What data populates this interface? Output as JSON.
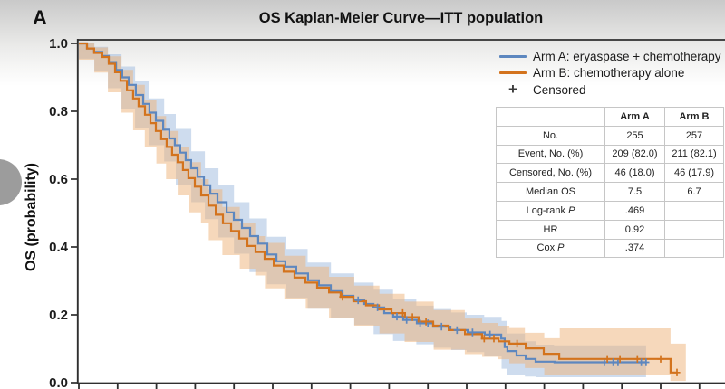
{
  "panel_label": "A",
  "title": "OS Kaplan-Meier Curve—ITT population",
  "legend": {
    "items": [
      {
        "label": "Arm A: eryaspase + chemotherapy",
        "kind": "line",
        "color": "#5d87bf"
      },
      {
        "label": "Arm B: chemotherapy alone",
        "kind": "line",
        "color": "#d3731d"
      },
      {
        "label": "Censored",
        "kind": "plus",
        "symbol": "+",
        "color": "#3a3a3a"
      }
    ]
  },
  "stats_table": {
    "headers": [
      "",
      "Arm A",
      "Arm B"
    ],
    "rows": [
      [
        "No.",
        "255",
        "257"
      ],
      [
        "Event, No. (%)",
        "209 (82.0)",
        "211 (82.1)"
      ],
      [
        "Censored, No. (%)",
        "46 (18.0)",
        "46 (17.9)"
      ],
      [
        "Median OS",
        "7.5",
        "6.7"
      ],
      [
        "Log-rank P",
        ".469",
        ""
      ],
      [
        "HR",
        "0.92",
        ""
      ],
      [
        "Cox P",
        ".374",
        ""
      ]
    ]
  },
  "chart_data": {
    "type": "line",
    "subtype": "kaplan-meier-step",
    "title": "OS Kaplan-Meier Curve—ITT population",
    "xlabel": "",
    "ylabel": "OS (probability)",
    "ylim": [
      0,
      1.0
    ],
    "xlim_months": [
      0,
      33.3
    ],
    "grid": false,
    "legend_position": "top-right",
    "y_ticks": [
      {
        "value": 1.0,
        "label": "1.0"
      },
      {
        "value": 0.8,
        "label": "0.8"
      },
      {
        "value": 0.6,
        "label": "0.6"
      },
      {
        "value": 0.4,
        "label": "0.4"
      },
      {
        "value": 0.2,
        "label": "0.2"
      },
      {
        "value": 0.0,
        "label": "0.0"
      }
    ],
    "x_ticks_months": [
      0,
      2,
      4,
      6,
      8,
      10,
      12,
      14,
      16,
      18,
      20,
      22,
      24,
      26,
      28,
      30,
      32
    ],
    "x_tick_labels_visible": false,
    "series": [
      {
        "name": "Arm A: eryaspase + chemotherapy",
        "color": "#5d87bf",
        "ci_color": "#9db9dd",
        "median_os_months": 7.5,
        "steps": [
          [
            0,
            1
          ],
          [
            0.42,
            0.985
          ],
          [
            0.79,
            0.975
          ],
          [
            1.21,
            0.963
          ],
          [
            1.54,
            0.945
          ],
          [
            1.92,
            0.922
          ],
          [
            2.24,
            0.9
          ],
          [
            2.57,
            0.878
          ],
          [
            2.94,
            0.848
          ],
          [
            3.32,
            0.822
          ],
          [
            3.64,
            0.796
          ],
          [
            3.97,
            0.772
          ],
          [
            4.35,
            0.746
          ],
          [
            4.67,
            0.72
          ],
          [
            4.95,
            0.7
          ],
          [
            5.23,
            0.678
          ],
          [
            5.51,
            0.656
          ],
          [
            5.79,
            0.632
          ],
          [
            6.12,
            0.607
          ],
          [
            6.45,
            0.582
          ],
          [
            6.78,
            0.557
          ],
          [
            7.15,
            0.532
          ],
          [
            7.62,
            0.502
          ],
          [
            7.99,
            0.48
          ],
          [
            8.41,
            0.456
          ],
          [
            8.83,
            0.432
          ],
          [
            9.25,
            0.41
          ],
          [
            9.72,
            0.378
          ],
          [
            10.19,
            0.358
          ],
          [
            10.65,
            0.342
          ],
          [
            11.21,
            0.322
          ],
          [
            11.82,
            0.302
          ],
          [
            12.38,
            0.287
          ],
          [
            12.99,
            0.27
          ],
          [
            13.6,
            0.256
          ],
          [
            14.16,
            0.243
          ],
          [
            14.72,
            0.232
          ],
          [
            15.19,
            0.222
          ],
          [
            15.75,
            0.205
          ],
          [
            16.21,
            0.195
          ],
          [
            16.73,
            0.185
          ],
          [
            17.43,
            0.175
          ],
          [
            18.27,
            0.165
          ],
          [
            19.16,
            0.155
          ],
          [
            20.05,
            0.148
          ],
          [
            20.93,
            0.142
          ],
          [
            21.78,
            0.13
          ],
          [
            21.96,
            0.105
          ],
          [
            22.1,
            0.093
          ],
          [
            22.57,
            0.08
          ],
          [
            23.04,
            0.07
          ],
          [
            23.55,
            0.062
          ],
          [
            24.53,
            0.06
          ],
          [
            29.25,
            0.06
          ]
        ],
        "ci": [
          [
            0,
            1,
            0.995
          ],
          [
            0.8,
            0.99,
            0.955
          ],
          [
            1.5,
            0.968,
            0.92
          ],
          [
            2.2,
            0.932,
            0.868
          ],
          [
            2.9,
            0.888,
            0.808
          ],
          [
            3.6,
            0.838,
            0.752
          ],
          [
            4.4,
            0.792,
            0.7
          ],
          [
            5.0,
            0.748,
            0.652
          ],
          [
            5.8,
            0.682,
            0.582
          ],
          [
            6.5,
            0.632,
            0.532
          ],
          [
            7.2,
            0.582,
            0.482
          ],
          [
            8.0,
            0.532,
            0.428
          ],
          [
            8.8,
            0.484,
            0.38
          ],
          [
            9.7,
            0.43,
            0.326
          ],
          [
            10.7,
            0.394,
            0.29
          ],
          [
            11.8,
            0.354,
            0.25
          ],
          [
            13.0,
            0.322,
            0.218
          ],
          [
            14.2,
            0.295,
            0.191
          ],
          [
            15.2,
            0.274,
            0.17
          ],
          [
            16.2,
            0.247,
            0.143
          ],
          [
            17.4,
            0.227,
            0.123
          ],
          [
            18.3,
            0.217,
            0.113
          ],
          [
            19.2,
            0.207,
            0.103
          ],
          [
            20.0,
            0.2,
            0.096
          ],
          [
            20.9,
            0.194,
            0.09
          ],
          [
            21.8,
            0.182,
            0.078
          ],
          [
            22.1,
            0.145,
            0.041
          ],
          [
            23.0,
            0.122,
            0.022
          ],
          [
            23.6,
            0.112,
            0.018
          ],
          [
            24.5,
            0.11,
            0.016
          ],
          [
            29.25,
            0.11,
            0.016
          ]
        ],
        "censor_marks_months": [
          14.4,
          15.4,
          16.4,
          16.9,
          17.6,
          18.0,
          18.7,
          19.5,
          20.3,
          21.2,
          27.1,
          27.55,
          27.8,
          29.0,
          29.25
        ]
      },
      {
        "name": "Arm B: chemotherapy alone",
        "color": "#d3731d",
        "ci_color": "#edb277",
        "median_os_months": 6.7,
        "steps": [
          [
            0,
            1
          ],
          [
            0.42,
            0.985
          ],
          [
            0.79,
            0.972
          ],
          [
            1.21,
            0.96
          ],
          [
            1.54,
            0.94
          ],
          [
            1.87,
            0.915
          ],
          [
            2.15,
            0.89
          ],
          [
            2.48,
            0.862
          ],
          [
            2.8,
            0.838
          ],
          [
            3.08,
            0.815
          ],
          [
            3.41,
            0.79
          ],
          [
            3.69,
            0.765
          ],
          [
            3.97,
            0.742
          ],
          [
            4.25,
            0.718
          ],
          [
            4.53,
            0.695
          ],
          [
            4.81,
            0.672
          ],
          [
            5.09,
            0.65
          ],
          [
            5.37,
            0.627
          ],
          [
            5.65,
            0.603
          ],
          [
            5.98,
            0.578
          ],
          [
            6.31,
            0.552
          ],
          [
            6.68,
            0.522
          ],
          [
            7.06,
            0.495
          ],
          [
            7.43,
            0.47
          ],
          [
            7.85,
            0.447
          ],
          [
            8.27,
            0.425
          ],
          [
            8.69,
            0.403
          ],
          [
            9.11,
            0.385
          ],
          [
            9.58,
            0.365
          ],
          [
            10.05,
            0.345
          ],
          [
            10.56,
            0.327
          ],
          [
            11.12,
            0.31
          ],
          [
            11.68,
            0.295
          ],
          [
            12.29,
            0.28
          ],
          [
            12.9,
            0.266
          ],
          [
            13.5,
            0.253
          ],
          [
            14.16,
            0.24
          ],
          [
            14.81,
            0.228
          ],
          [
            15.47,
            0.216
          ],
          [
            16.12,
            0.205
          ],
          [
            16.82,
            0.193
          ],
          [
            17.52,
            0.18
          ],
          [
            18.27,
            0.168
          ],
          [
            19.07,
            0.155
          ],
          [
            19.91,
            0.143
          ],
          [
            20.79,
            0.13
          ],
          [
            21.64,
            0.122
          ],
          [
            22.2,
            0.115
          ],
          [
            23.04,
            0.101
          ],
          [
            23.97,
            0.085
          ],
          [
            24.77,
            0.07
          ],
          [
            30.51,
            0.07
          ],
          [
            30.51,
            0.03
          ],
          [
            30.84,
            0.03
          ]
        ],
        "ci": [
          [
            0,
            1,
            0.995
          ],
          [
            0.8,
            0.988,
            0.952
          ],
          [
            1.5,
            0.962,
            0.914
          ],
          [
            2.2,
            0.922,
            0.856
          ],
          [
            2.8,
            0.878,
            0.796
          ],
          [
            3.4,
            0.832,
            0.744
          ],
          [
            4.0,
            0.786,
            0.694
          ],
          [
            4.5,
            0.742,
            0.646
          ],
          [
            5.1,
            0.696,
            0.6
          ],
          [
            5.7,
            0.65,
            0.552
          ],
          [
            6.3,
            0.6,
            0.502
          ],
          [
            6.7,
            0.57,
            0.472
          ],
          [
            7.4,
            0.518,
            0.42
          ],
          [
            8.3,
            0.472,
            0.376
          ],
          [
            9.1,
            0.432,
            0.336
          ],
          [
            9.6,
            0.412,
            0.316
          ],
          [
            10.6,
            0.374,
            0.278
          ],
          [
            11.7,
            0.342,
            0.246
          ],
          [
            12.9,
            0.312,
            0.218
          ],
          [
            14.2,
            0.286,
            0.192
          ],
          [
            15.5,
            0.262,
            0.168
          ],
          [
            16.8,
            0.239,
            0.145
          ],
          [
            18.3,
            0.214,
            0.12
          ],
          [
            19.9,
            0.189,
            0.097
          ],
          [
            20.8,
            0.176,
            0.084
          ],
          [
            21.6,
            0.168,
            0.076
          ],
          [
            22.2,
            0.161,
            0.069
          ],
          [
            23.0,
            0.147,
            0.057
          ],
          [
            24.0,
            0.131,
            0.043
          ],
          [
            24.8,
            0.16,
            0.024
          ],
          [
            30.5,
            0.16,
            0.024
          ],
          [
            30.51,
            0.115,
            0.005
          ],
          [
            31.3,
            0.115,
            0.005
          ]
        ],
        "censor_marks_months": [
          13.6,
          16.7,
          17.2,
          17.9,
          20.9,
          21.4,
          22.6,
          27.25,
          27.9,
          28.8,
          30.0,
          30.84
        ]
      }
    ]
  }
}
